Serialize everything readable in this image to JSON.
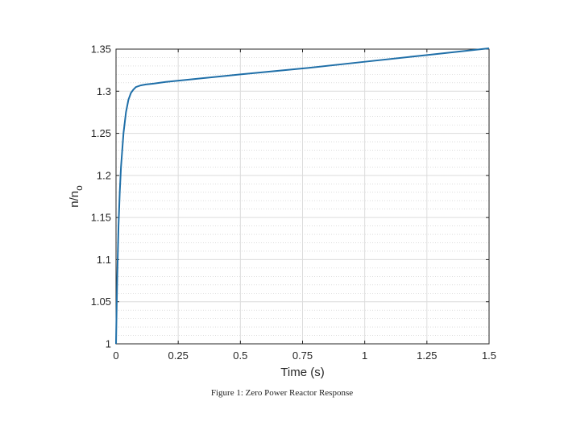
{
  "caption": "Figure 1: Zero Power Reactor Response",
  "chart_data": {
    "type": "line",
    "title": "",
    "xlabel": "Time (s)",
    "ylabel": "n/n",
    "ylabel_subscript": "o",
    "xlim": [
      0,
      1.5
    ],
    "ylim": [
      1,
      1.35
    ],
    "xticks": [
      0,
      0.25,
      0.5,
      0.75,
      1,
      1.25,
      1.5
    ],
    "xtick_labels": [
      "0",
      "0.25",
      "0.5",
      "0.75",
      "1",
      "1.25",
      "1.5"
    ],
    "yticks": [
      1,
      1.05,
      1.1,
      1.15,
      1.2,
      1.25,
      1.3,
      1.35
    ],
    "ytick_labels": [
      "1",
      "1.05",
      "1.1",
      "1.15",
      "1.2",
      "1.25",
      "1.3",
      "1.35"
    ],
    "grid": true,
    "minor_grid": true,
    "line_color": "#1f6fa8",
    "series": [
      {
        "x": [
          0,
          0.002,
          0.005,
          0.01,
          0.015,
          0.02,
          0.03,
          0.04,
          0.05,
          0.06,
          0.07,
          0.08,
          0.1,
          0.12,
          0.15,
          0.2,
          0.3,
          0.5,
          0.75,
          1.0,
          1.25,
          1.5
        ],
        "y": [
          1.0,
          1.035,
          1.08,
          1.14,
          1.18,
          1.21,
          1.25,
          1.275,
          1.29,
          1.298,
          1.302,
          1.305,
          1.307,
          1.308,
          1.309,
          1.311,
          1.314,
          1.32,
          1.327,
          1.335,
          1.343,
          1.351
        ]
      }
    ]
  }
}
